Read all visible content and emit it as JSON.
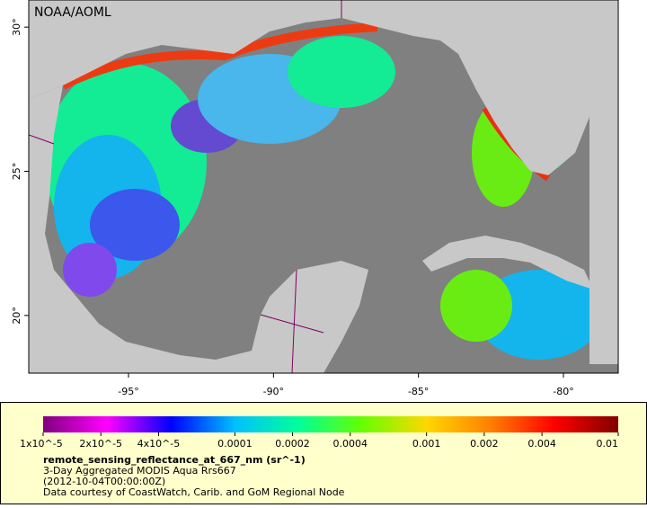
{
  "map": {
    "title": "NOAA/AOML",
    "xlim": [
      -98.44,
      -78.11
    ],
    "ylim": [
      18.0,
      30.94
    ],
    "xticks": [
      {
        "value": -95,
        "label": "-95°"
      },
      {
        "value": -90,
        "label": "-90°"
      },
      {
        "value": -85,
        "label": "-85°"
      },
      {
        "value": -80,
        "label": "-80°"
      }
    ],
    "yticks": [
      {
        "value": 20,
        "label": "20°"
      },
      {
        "value": 25,
        "label": "25°"
      },
      {
        "value": 30,
        "label": "30°"
      }
    ]
  },
  "colorbar": {
    "scale": "log",
    "lim": [
      1e-05,
      0.01
    ],
    "colors": [
      "#800080",
      "#ff00ff",
      "#0000ff",
      "#00bfff",
      "#00ff99",
      "#66ff00",
      "#ffd700",
      "#ff8000",
      "#ff0000",
      "#800000"
    ],
    "ticks": [
      {
        "value": 1e-05,
        "label": "1x10^-5"
      },
      {
        "value": 2e-05,
        "label": "2x10^-5"
      },
      {
        "value": 4e-05,
        "label": "4x10^-5"
      },
      0.0001,
      0.0002,
      0.0004,
      0.001,
      0.002,
      0.004,
      0.01
    ]
  },
  "caption": {
    "variable": "remote_sensing_reflectance_at_667_nm (sr^-1)",
    "lines": [
      "3-Day Aggregated MODIS Aqua Rrs667",
      "(2012-10-04T00:00:00Z)",
      "Data courtesy of CoastWatch, Carib. and GoM Regional Node"
    ]
  }
}
